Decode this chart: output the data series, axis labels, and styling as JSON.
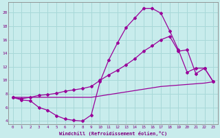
{
  "xlabel": "Windchill (Refroidissement éolien,°C)",
  "bg_color": "#c8ecec",
  "grid_color": "#a8d8d8",
  "line_color": "#990099",
  "x_ticks": [
    0,
    1,
    2,
    3,
    4,
    5,
    6,
    7,
    8,
    9,
    10,
    11,
    12,
    13,
    14,
    15,
    16,
    17,
    18,
    19,
    20,
    21,
    22,
    23
  ],
  "ylim": [
    3.5,
    21.5
  ],
  "xlim": [
    -0.5,
    23.5
  ],
  "yticks": [
    4,
    6,
    8,
    10,
    12,
    14,
    16,
    18,
    20
  ],
  "series": [
    {
      "x": [
        0,
        1,
        2,
        3,
        4,
        5,
        6,
        7,
        8,
        9,
        10,
        11,
        12,
        13,
        14,
        15,
        16,
        17,
        18,
        19,
        20,
        21,
        22,
        23
      ],
      "y": [
        7.5,
        7.1,
        7.0,
        6.0,
        5.6,
        4.8,
        4.3,
        4.1,
        4.0,
        4.9,
        9.8,
        13.0,
        15.5,
        17.8,
        19.2,
        20.6,
        20.6,
        19.9,
        17.3,
        14.5,
        11.2,
        11.8,
        11.8,
        9.8
      ],
      "markers": true
    },
    {
      "x": [
        0,
        1,
        2,
        3,
        4,
        5,
        6,
        7,
        8,
        9,
        10,
        11,
        12,
        13,
        14,
        15,
        16,
        17,
        18,
        19,
        20,
        21,
        22,
        23
      ],
      "y": [
        7.5,
        7.3,
        7.5,
        7.8,
        7.9,
        8.1,
        8.4,
        8.6,
        8.8,
        9.1,
        10.0,
        10.8,
        11.5,
        12.3,
        13.2,
        14.3,
        15.1,
        16.0,
        16.5,
        14.3,
        14.5,
        11.0,
        11.8,
        9.8
      ],
      "markers": true
    },
    {
      "x": [
        0,
        9,
        10,
        11,
        12,
        13,
        14,
        15,
        16,
        17,
        18,
        19,
        20,
        21,
        22,
        23
      ],
      "y": [
        7.5,
        7.5,
        7.7,
        7.9,
        8.1,
        8.3,
        8.5,
        8.7,
        8.9,
        9.1,
        9.2,
        9.3,
        9.4,
        9.5,
        9.6,
        9.8
      ],
      "markers": false
    }
  ]
}
